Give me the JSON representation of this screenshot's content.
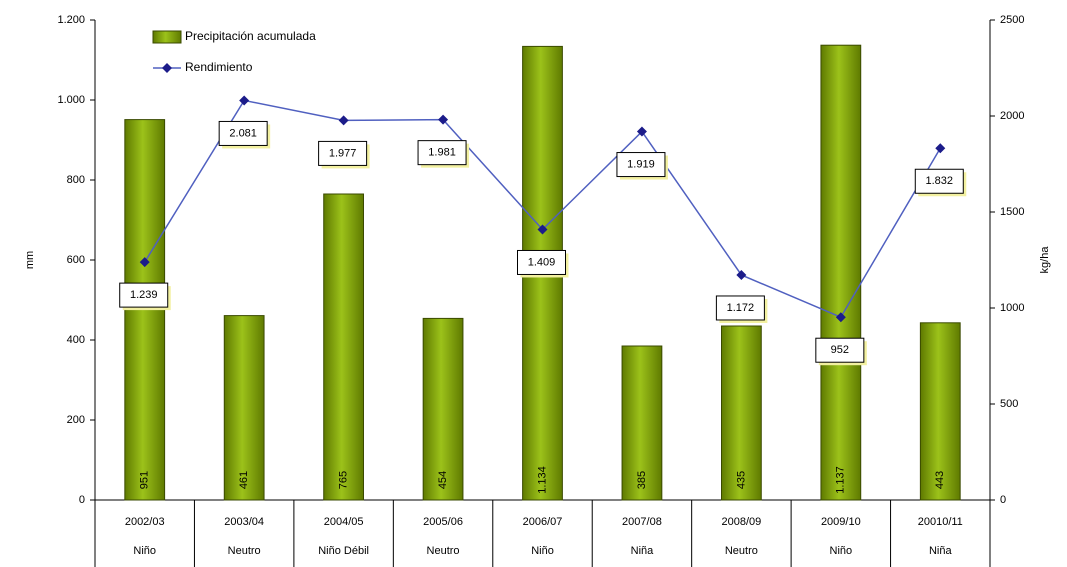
{
  "chart_data": {
    "type": "combo",
    "categories": [
      "2002/03",
      "2003/04",
      "2004/05",
      "2005/06",
      "2006/07",
      "2007/08",
      "2008/09",
      "2009/10",
      "20010/11"
    ],
    "phases": [
      "Niño",
      "Neutro",
      "Niño Débil",
      "Neutro",
      "Niño",
      "Niña",
      "Neutro",
      "Niño",
      "Niña"
    ],
    "y_label": "mm",
    "y2_label": "kg/ha",
    "ylim": [
      0,
      1200
    ],
    "yticks": [
      0,
      200,
      400,
      600,
      800,
      {
        "value": 1000,
        "label": "1.000"
      },
      {
        "value": 1200,
        "label": "1.200"
      }
    ],
    "y2lim": [
      0,
      2500
    ],
    "y2ticks": [
      0,
      500,
      1000,
      1500,
      2000,
      2500
    ],
    "legend": "top-left",
    "series": [
      {
        "name": "Precipitación acumulada",
        "type": "bar",
        "color": "#7f9f00",
        "values": [
          951,
          461,
          765,
          454,
          1134,
          385,
          435,
          1137,
          443
        ],
        "value_labels": [
          "951",
          "461",
          "765",
          "454",
          "1.134",
          "385",
          "435",
          "1.137",
          "443"
        ]
      },
      {
        "name": "Rendimiento",
        "type": "line",
        "axis": "y2",
        "color": "#1c1c8a",
        "values": [
          1239,
          2081,
          1977,
          1981,
          1409,
          1919,
          1172,
          952,
          1832
        ],
        "value_labels": [
          "1.239",
          "2.081",
          "1.977",
          "1.981",
          "1.409",
          "1.919",
          "1.172",
          "952",
          "1.832"
        ]
      }
    ]
  }
}
